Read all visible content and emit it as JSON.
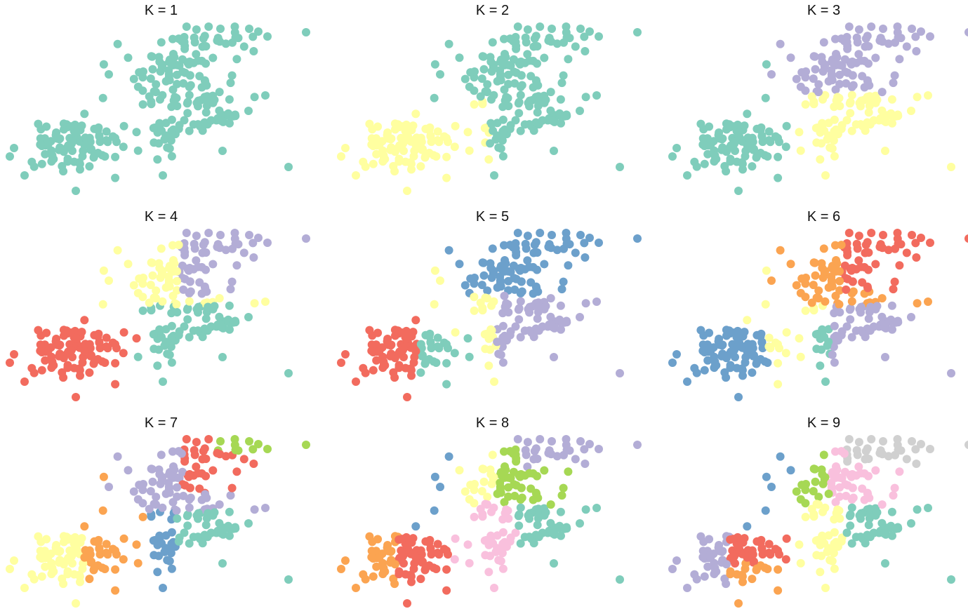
{
  "chart_data": [
    {
      "type": "scatter",
      "title": "K = 1",
      "grid": false,
      "colors": [
        "#7FCDBB"
      ]
    },
    {
      "type": "scatter",
      "title": "K = 2",
      "grid": false,
      "colors": [
        "#7FCDBB",
        "#FFFFA0"
      ]
    },
    {
      "type": "scatter",
      "title": "K = 3",
      "grid": false,
      "colors": [
        "#7FCDBB",
        "#FFFFA0",
        "#B3ADD6"
      ]
    },
    {
      "type": "scatter",
      "title": "K = 4",
      "grid": false,
      "colors": [
        "#7FCDBB",
        "#FFFFA0",
        "#B3ADD6",
        "#F26B5E"
      ]
    },
    {
      "type": "scatter",
      "title": "K = 5",
      "grid": false,
      "colors": [
        "#7FCDBB",
        "#FFFFA0",
        "#B3ADD6",
        "#F26B5E",
        "#6CA0CB"
      ]
    },
    {
      "type": "scatter",
      "title": "K = 6",
      "grid": false,
      "colors": [
        "#7FCDBB",
        "#FFFFA0",
        "#B3ADD6",
        "#F26B5E",
        "#6CA0CB",
        "#FBA451"
      ]
    },
    {
      "type": "scatter",
      "title": "K = 7",
      "grid": false,
      "colors": [
        "#7FCDBB",
        "#FFFFA0",
        "#B3ADD6",
        "#F26B5E",
        "#6CA0CB",
        "#FBA451",
        "#A6D854"
      ]
    },
    {
      "type": "scatter",
      "title": "K = 8",
      "grid": false,
      "colors": [
        "#7FCDBB",
        "#FFFFA0",
        "#B3ADD6",
        "#F26B5E",
        "#6CA0CB",
        "#FBA451",
        "#A6D854",
        "#F9C0DD"
      ]
    },
    {
      "type": "scatter",
      "title": "K = 9",
      "grid": false,
      "colors": [
        "#7FCDBB",
        "#FFFFA0",
        "#B3ADD6",
        "#F26B5E",
        "#6CA0CB",
        "#FBA451",
        "#A6D854",
        "#F9C0DD",
        "#D0D0D0"
      ]
    }
  ]
}
